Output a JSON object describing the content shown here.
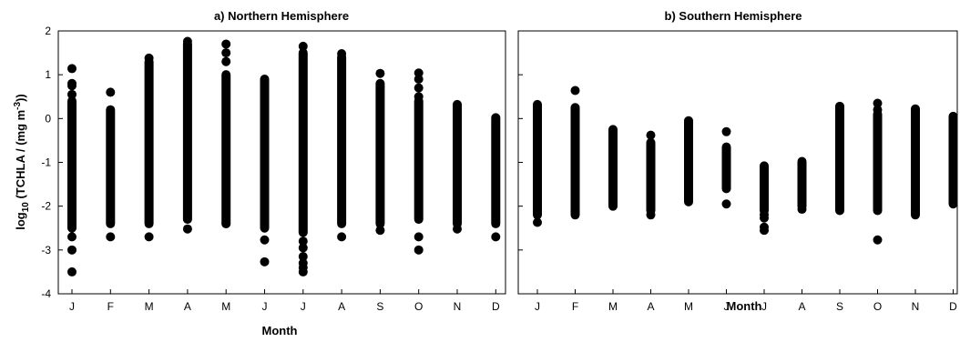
{
  "colors": {
    "marker": "#000000",
    "axis": "#000000",
    "background": "#ffffff"
  },
  "chart_data": [
    {
      "type": "scatter",
      "title": "a) Northern Hemisphere",
      "xlabel": "Month",
      "ylabel": {
        "prefix": "log",
        "sub": "10",
        "mid": " (TCHLA / (mg m",
        "sup": "-3",
        "suffix": "))"
      },
      "categories": [
        "J",
        "F",
        "M",
        "A",
        "M",
        "J",
        "J",
        "A",
        "S",
        "O",
        "N",
        "D"
      ],
      "ylim": [
        -4,
        2
      ],
      "yticks": [
        "-4",
        "-3",
        "-2",
        "-1",
        "0",
        "1",
        "2"
      ],
      "grid": false,
      "series": [
        {
          "ranges": [
            [
              -2.5,
              0.4
            ],
            [
              -2.4,
              0.2
            ],
            [
              -2.4,
              1.3
            ],
            [
              -2.3,
              1.7
            ],
            [
              -2.4,
              1.0
            ],
            [
              -2.5,
              0.9
            ],
            [
              -2.6,
              1.5
            ],
            [
              -2.4,
              1.4
            ],
            [
              -2.4,
              0.8
            ],
            [
              -2.3,
              0.4
            ],
            [
              -2.4,
              0.3
            ],
            [
              -2.4,
              0.0
            ]
          ],
          "outliers": [
            [
              -3.5,
              -3.0,
              -2.7,
              1.14,
              0.8,
              0.75,
              0.55
            ],
            [
              -2.7,
              0.6
            ],
            [
              -2.7,
              1.38
            ],
            [
              -2.52,
              1.76
            ],
            [
              -2.4,
              1.5,
              1.3,
              1.7
            ],
            [
              -3.27,
              -2.77
            ],
            [
              -3.5,
              -3.4,
              -3.3,
              -3.15,
              -2.95,
              -2.8,
              1.65
            ],
            [
              -2.7,
              1.48
            ],
            [
              -2.55,
              1.03
            ],
            [
              -3.0,
              -2.7,
              1.04,
              0.9,
              0.7,
              0.5
            ],
            [
              -2.52,
              0.32
            ],
            [
              -2.7,
              0.02
            ]
          ]
        }
      ]
    },
    {
      "type": "scatter",
      "title": "b) Southern Hemisphere",
      "xlabel": "Month",
      "categories": [
        "J",
        "F",
        "M",
        "A",
        "M",
        "J",
        "J",
        "A",
        "S",
        "O",
        "N",
        "D"
      ],
      "ylim": [
        -4,
        2
      ],
      "grid": false,
      "series": [
        {
          "ranges": [
            [
              -2.2,
              0.32
            ],
            [
              -2.2,
              0.25
            ],
            [
              -2.0,
              -0.25
            ],
            [
              -2.1,
              -0.55
            ],
            [
              -1.9,
              -0.05
            ],
            [
              -1.6,
              -0.65
            ],
            [
              -2.1,
              -1.08
            ],
            [
              -2.0,
              -0.98
            ],
            [
              -2.1,
              0.28
            ],
            [
              -2.1,
              0.1
            ],
            [
              -2.2,
              0.22
            ],
            [
              -1.95,
              0.05
            ]
          ],
          "outliers": [
            [
              -2.37
            ],
            [
              0.64
            ],
            [],
            [
              -2.2,
              -0.38
            ],
            [],
            [
              -1.95,
              -0.3
            ],
            [
              -2.55,
              -2.48,
              -2.27,
              -2.2
            ],
            [
              -2.07
            ],
            [],
            [
              -2.77,
              0.35,
              0.2
            ],
            [],
            []
          ]
        }
      ]
    }
  ]
}
